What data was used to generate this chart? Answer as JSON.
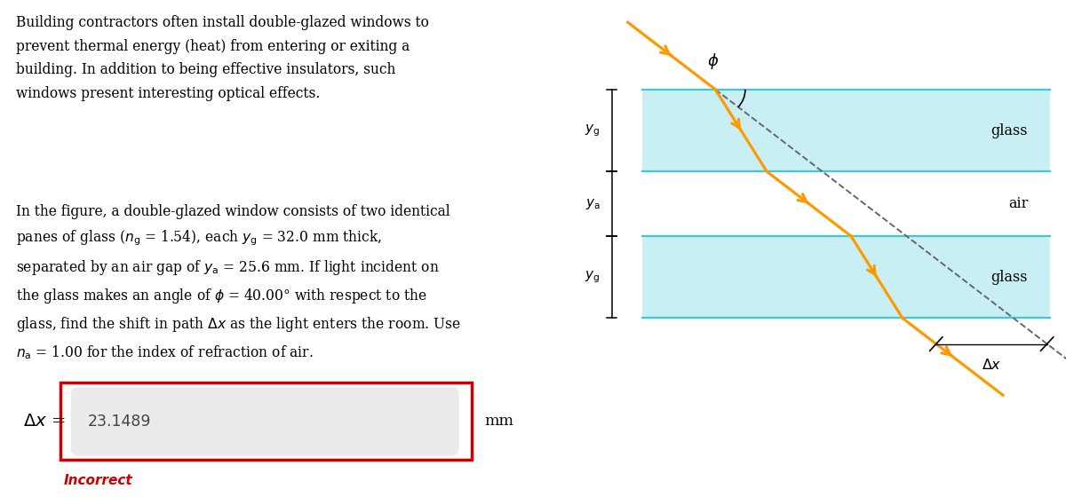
{
  "answer_value": "23.1489",
  "answer_unit": "mm",
  "incorrect_text": "Incorrect",
  "glass_color": "#c8f0f4",
  "glass_edge_color": "#40c8d8",
  "glass_label": "glass",
  "air_label": "air",
  "arrow_color": "#ff9900",
  "dashed_color": "#666666",
  "answer_box_border_color": "#cc0000",
  "input_box_color": "#ebebeb",
  "incorrect_color": "#cc0000",
  "bg_color": "#ffffff",
  "fig_width": 12.0,
  "fig_height": 5.6,
  "phi_deg": 40.0,
  "n_glass": 1.54,
  "n_air": 1.0
}
